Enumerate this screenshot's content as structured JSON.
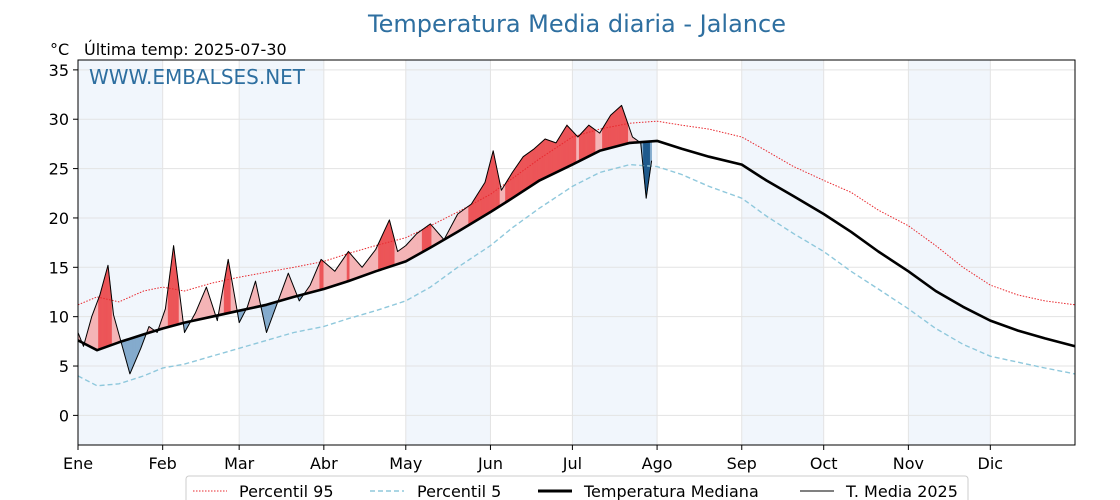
{
  "chart_data": {
    "type": "line",
    "title": "Temperatura Media diaria - Jalance",
    "unit_label": "°C",
    "last_reading": "Última temp: 2025-07-30",
    "watermark": "WWW.EMBALSES.NET",
    "ylim": [
      -3,
      36
    ],
    "yticks": [
      0,
      5,
      10,
      15,
      20,
      25,
      30,
      35
    ],
    "xlim": [
      1,
      366
    ],
    "months": [
      {
        "label": "Ene",
        "day": 1
      },
      {
        "label": "Feb",
        "day": 32
      },
      {
        "label": "Mar",
        "day": 60
      },
      {
        "label": "Abr",
        "day": 91
      },
      {
        "label": "May",
        "day": 121
      },
      {
        "label": "Jun",
        "day": 152
      },
      {
        "label": "Jul",
        "day": 182
      },
      {
        "label": "Ago",
        "day": 213
      },
      {
        "label": "Sep",
        "day": 244
      },
      {
        "label": "Oct",
        "day": 274
      },
      {
        "label": "Nov",
        "day": 305
      },
      {
        "label": "Dic",
        "day": 335
      }
    ],
    "grid": true,
    "legend_position": "bottom",
    "series": [
      {
        "name": "Percentil 95",
        "color": "#e8282e",
        "style": "dotted",
        "x": [
          1,
          8,
          16,
          25,
          32,
          40,
          50,
          60,
          70,
          80,
          91,
          100,
          110,
          121,
          130,
          140,
          152,
          160,
          170,
          182,
          192,
          203,
          213,
          222,
          232,
          244,
          253,
          263,
          274,
          284,
          294,
          305,
          315,
          325,
          335,
          345,
          355,
          366
        ],
        "y": [
          11.2,
          12.0,
          11.5,
          12.6,
          13.0,
          12.6,
          13.4,
          14.0,
          14.5,
          15.0,
          15.6,
          16.4,
          17.2,
          18.0,
          19.2,
          20.6,
          22.4,
          24.0,
          26.0,
          28.2,
          29.0,
          29.6,
          29.8,
          29.4,
          29.0,
          28.2,
          26.8,
          25.2,
          23.8,
          22.6,
          20.8,
          19.2,
          17.2,
          15.0,
          13.2,
          12.2,
          11.6,
          11.2
        ]
      },
      {
        "name": "Percentil 5",
        "color": "#8fc8dc",
        "style": "dashed",
        "x": [
          1,
          8,
          16,
          25,
          32,
          40,
          50,
          60,
          70,
          80,
          91,
          100,
          110,
          121,
          130,
          140,
          152,
          160,
          170,
          182,
          192,
          203,
          213,
          222,
          232,
          244,
          253,
          263,
          274,
          284,
          294,
          305,
          315,
          325,
          335,
          345,
          355,
          366
        ],
        "y": [
          4.0,
          3.0,
          3.2,
          4.0,
          4.8,
          5.2,
          6.0,
          6.8,
          7.6,
          8.4,
          9.0,
          9.8,
          10.6,
          11.6,
          13.0,
          15.0,
          17.2,
          19.0,
          21.0,
          23.2,
          24.6,
          25.4,
          25.2,
          24.4,
          23.2,
          22.0,
          20.2,
          18.4,
          16.6,
          14.6,
          12.8,
          10.8,
          8.8,
          7.2,
          6.0,
          5.4,
          4.8,
          4.2
        ]
      },
      {
        "name": "Temperatura Mediana",
        "color": "#000000",
        "style": "solid-thick",
        "x": [
          1,
          8,
          16,
          25,
          32,
          40,
          50,
          60,
          70,
          80,
          91,
          100,
          110,
          121,
          130,
          140,
          152,
          160,
          170,
          182,
          192,
          203,
          213,
          222,
          232,
          244,
          253,
          263,
          274,
          284,
          294,
          305,
          315,
          325,
          335,
          345,
          355,
          366
        ],
        "y": [
          7.6,
          6.6,
          7.4,
          8.2,
          8.8,
          9.4,
          10.0,
          10.6,
          11.2,
          12.0,
          12.8,
          13.6,
          14.6,
          15.6,
          17.0,
          18.6,
          20.6,
          22.0,
          23.8,
          25.4,
          26.8,
          27.6,
          27.8,
          27.0,
          26.2,
          25.4,
          23.8,
          22.2,
          20.4,
          18.6,
          16.6,
          14.6,
          12.6,
          11.0,
          9.6,
          8.6,
          7.8,
          7.0
        ]
      },
      {
        "name": "T. Media 2025",
        "color": "#000000",
        "style": "solid-thin",
        "x": [
          1,
          3,
          6,
          9,
          12,
          14,
          17,
          20,
          24,
          27,
          30,
          33,
          36,
          40,
          44,
          48,
          52,
          56,
          60,
          63,
          66,
          70,
          74,
          78,
          82,
          86,
          90,
          95,
          100,
          105,
          110,
          115,
          118,
          121,
          125,
          130,
          135,
          140,
          145,
          150,
          153,
          156,
          160,
          164,
          168,
          172,
          176,
          180,
          184,
          188,
          192,
          196,
          200,
          204,
          207,
          209,
          211
        ],
        "y": [
          8.4,
          7.0,
          10.0,
          12.2,
          15.2,
          10.2,
          7.2,
          4.2,
          6.8,
          9.0,
          8.4,
          10.8,
          17.2,
          8.4,
          10.4,
          13.0,
          9.6,
          15.8,
          9.4,
          11.0,
          13.6,
          8.4,
          11.4,
          14.4,
          11.6,
          13.2,
          15.8,
          14.6,
          16.6,
          15.0,
          16.8,
          19.8,
          16.6,
          17.2,
          18.4,
          19.4,
          17.8,
          20.4,
          21.4,
          23.6,
          26.8,
          22.8,
          24.6,
          26.2,
          27.0,
          28.0,
          27.6,
          29.4,
          28.2,
          29.4,
          28.6,
          30.4,
          31.4,
          28.2,
          27.6,
          22.0,
          25.8
        ]
      }
    ]
  }
}
